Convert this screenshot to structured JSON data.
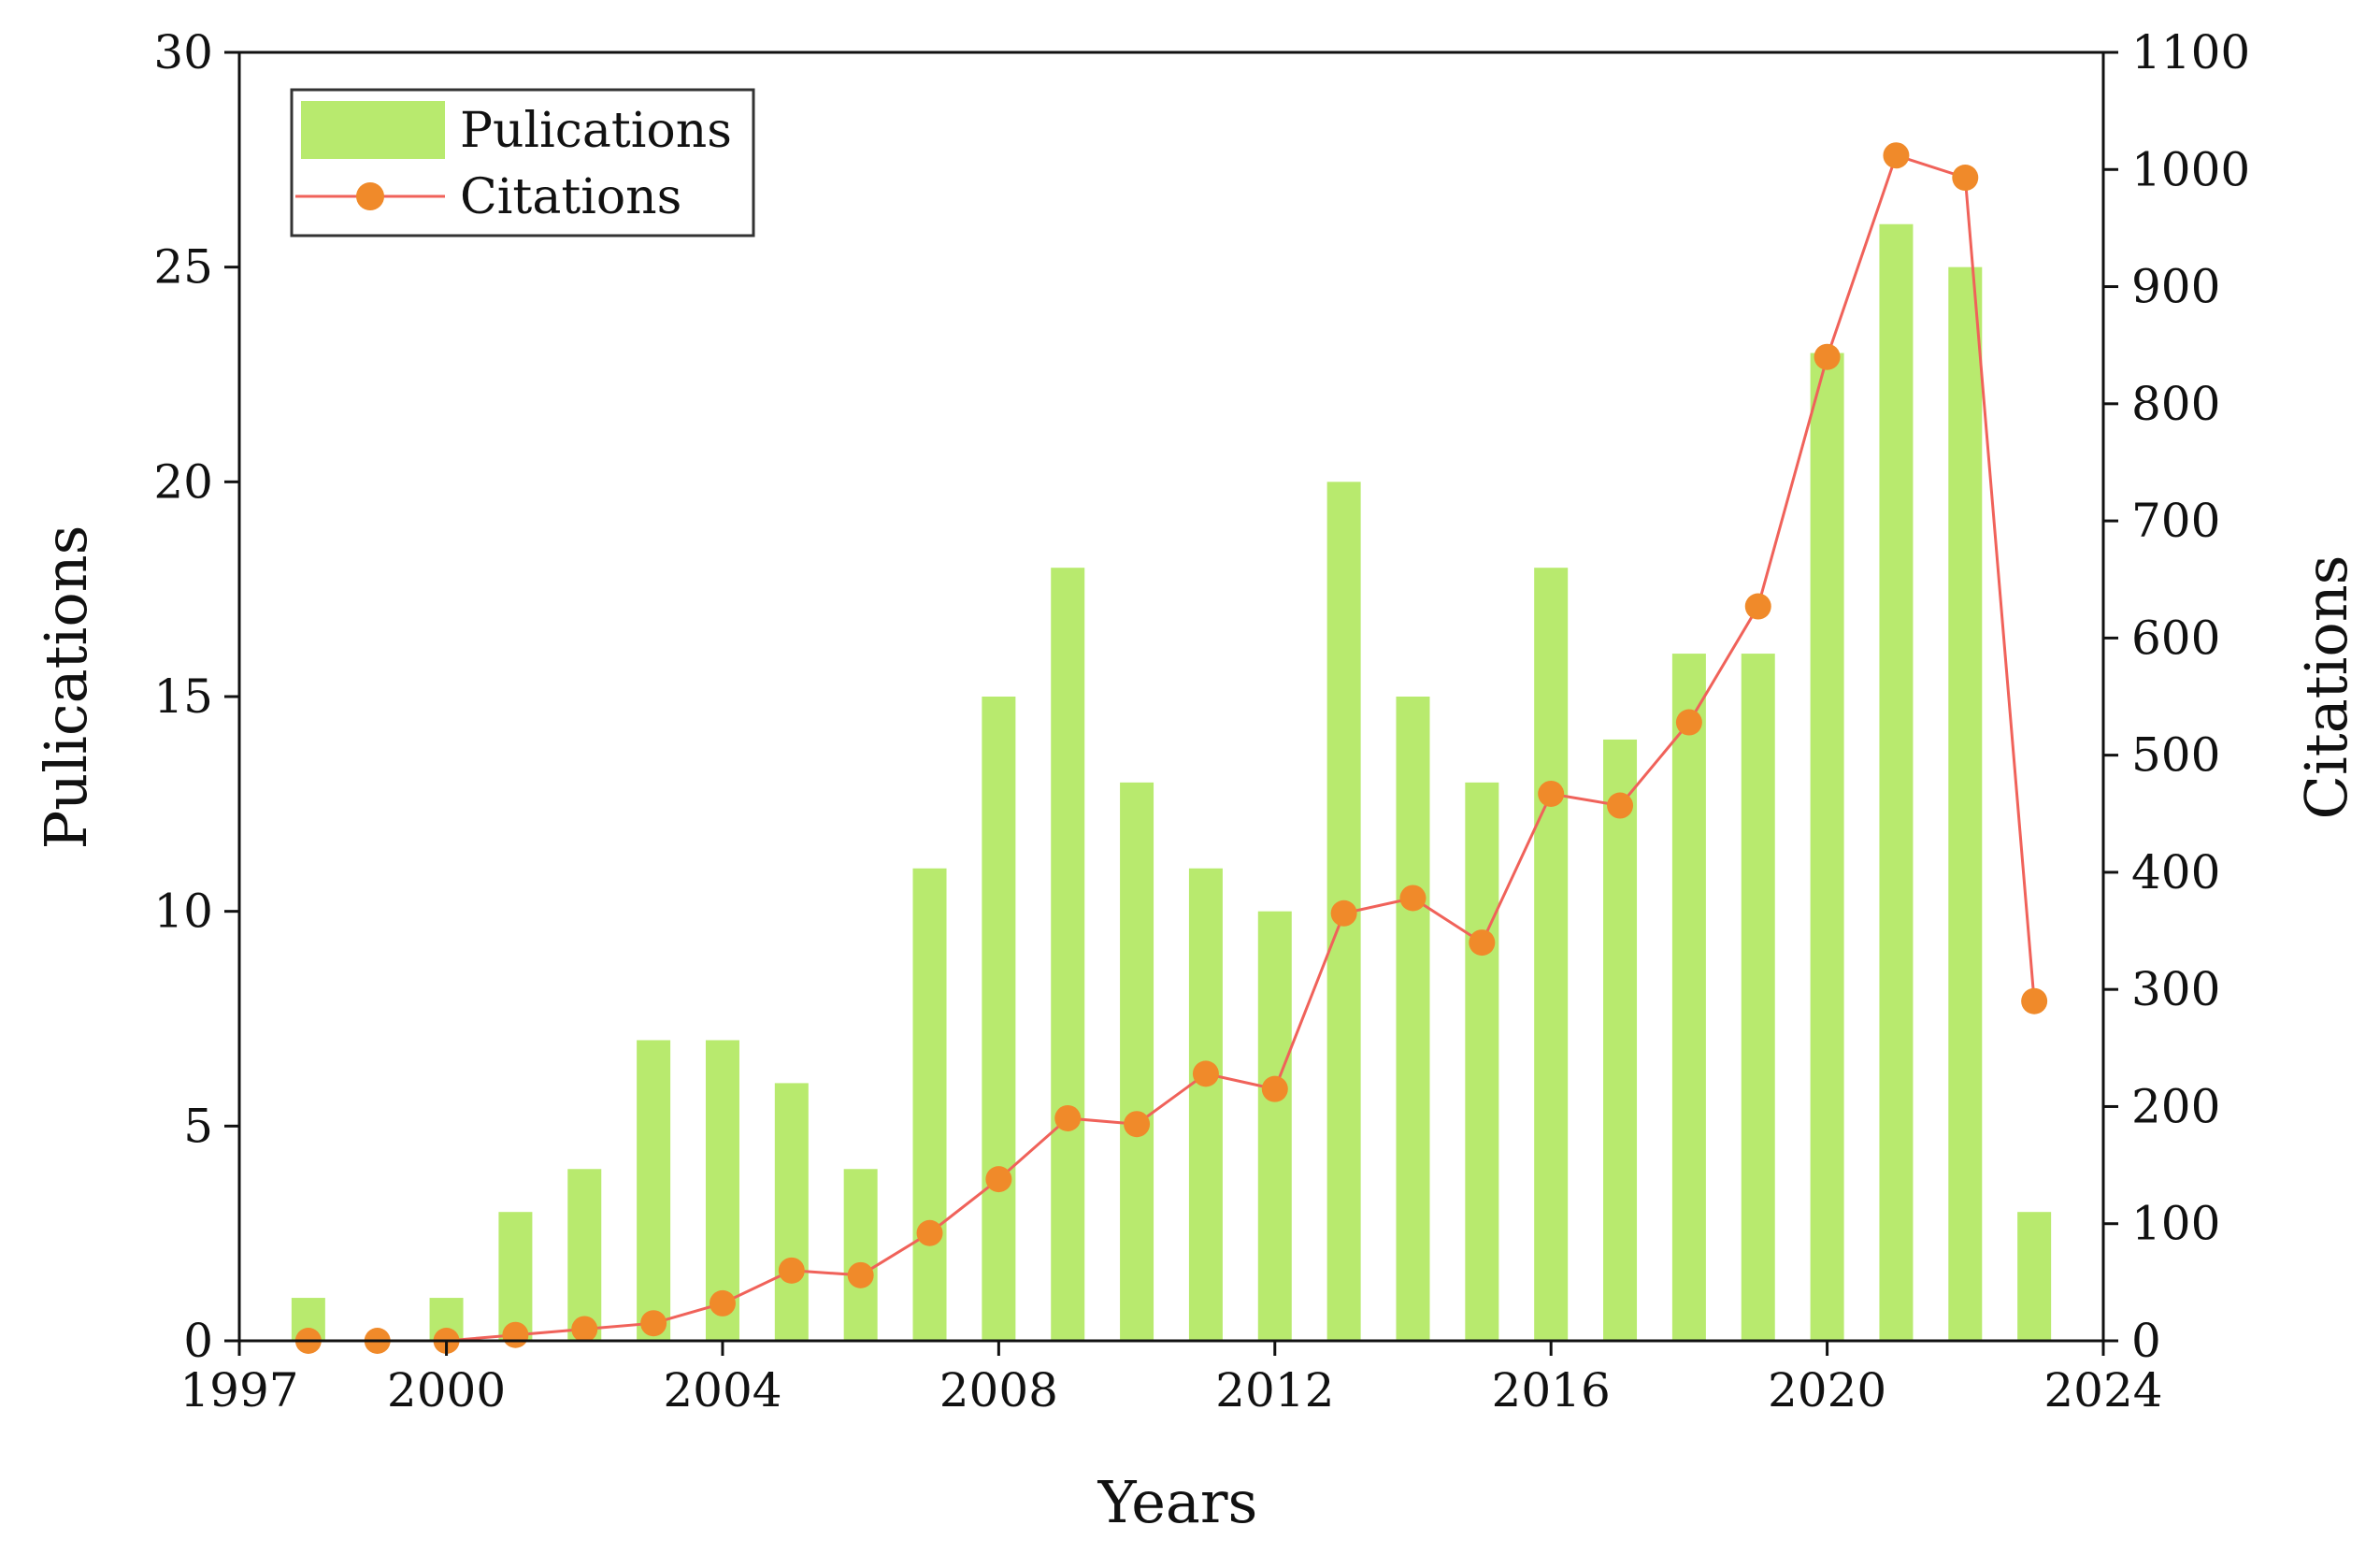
{
  "chart_data": {
    "type": "bar+line",
    "title": "",
    "xlabel": "Years",
    "ylabel_left": "Pulications",
    "ylabel_right": "Citations",
    "xlim": [
      1997,
      2024
    ],
    "x_ticks": [
      "1997",
      "2000",
      "2004",
      "2008",
      "2012",
      "2016",
      "2020",
      "2024"
    ],
    "ylim_left": [
      0,
      30
    ],
    "y_ticks_left": [
      "0",
      "5",
      "10",
      "15",
      "20",
      "25",
      "30"
    ],
    "ylim_right": [
      0,
      1100
    ],
    "y_ticks_right": [
      "0",
      "100",
      "200",
      "300",
      "400",
      "500",
      "600",
      "700",
      "800",
      "900",
      "1000",
      "1100"
    ],
    "x": [
      1998,
      1999,
      2000,
      2001,
      2002,
      2003,
      2004,
      2005,
      2006,
      2007,
      2008,
      2009,
      2010,
      2011,
      2012,
      2013,
      2014,
      2015,
      2016,
      2017,
      2018,
      2019,
      2020,
      2021,
      2022,
      2023
    ],
    "series": [
      {
        "name": "Pulications",
        "kind": "bar",
        "axis": "left",
        "color": "#b8ea6e",
        "values": [
          1,
          0,
          1,
          3,
          4,
          7,
          7,
          6,
          4,
          11,
          15,
          18,
          13,
          11,
          10,
          20,
          15,
          13,
          18,
          14,
          16,
          16,
          23,
          26,
          25,
          3
        ]
      },
      {
        "name": "Citations",
        "kind": "line",
        "axis": "right",
        "color": "#f0625a",
        "marker_color": "#f08a2a",
        "values": [
          0,
          0,
          0,
          5,
          10,
          15,
          32,
          60,
          56,
          92,
          138,
          190,
          185,
          228,
          215,
          365,
          378,
          340,
          467,
          457,
          528,
          627,
          840,
          1012,
          993,
          290
        ]
      }
    ],
    "legend": {
      "position": "top-left",
      "entries": [
        "Pulications",
        "Citations"
      ]
    },
    "grid": false
  }
}
